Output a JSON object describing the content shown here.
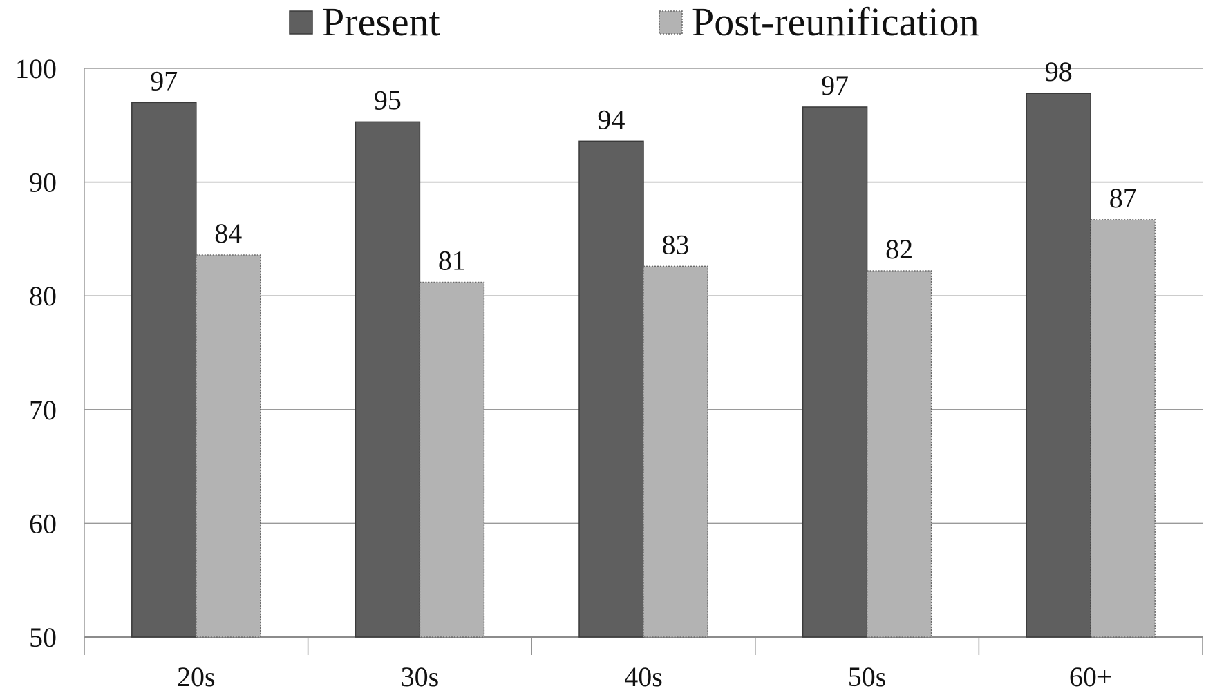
{
  "chart_data": {
    "type": "bar",
    "categories": [
      "20s",
      "30s",
      "40s",
      "50s",
      "60+"
    ],
    "series": [
      {
        "name": "Present",
        "color": "#5f5f5f",
        "values": [
          97,
          95.3,
          93.6,
          96.6,
          97.8
        ],
        "labels": [
          "97",
          "95",
          "94",
          "97",
          "98"
        ]
      },
      {
        "name": "Post-reunification",
        "color": "#b3b3b3",
        "values": [
          83.6,
          81.2,
          82.6,
          82.2,
          86.7
        ],
        "labels": [
          "84",
          "81",
          "83",
          "82",
          "87"
        ]
      }
    ],
    "yticks": [
      "50",
      "60",
      "70",
      "80",
      "90",
      "100"
    ],
    "ylim": [
      50,
      100
    ],
    "grid": true,
    "legend_position": "top"
  }
}
